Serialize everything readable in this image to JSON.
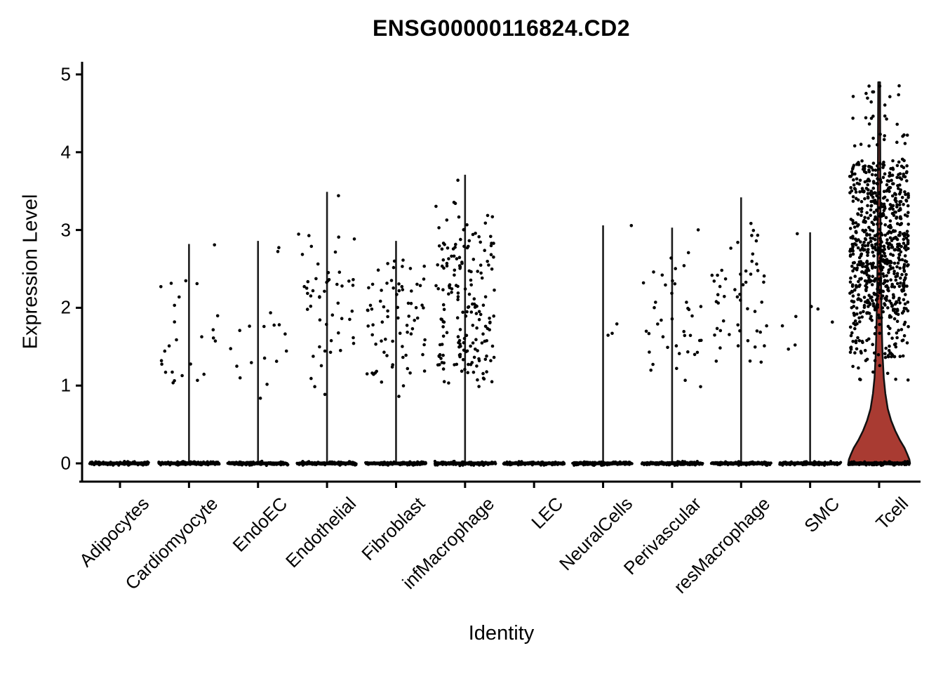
{
  "title": "ENSG00000116824.CD2",
  "y_axis": {
    "label": "Expression Level",
    "ticks": [
      "0",
      "1",
      "2",
      "3",
      "4",
      "5"
    ]
  },
  "x_axis": {
    "label": "Identity"
  },
  "chart_data": {
    "type": "violin",
    "style": "seurat-vlnplot-with-jitter",
    "title": "ENSG00000116824.CD2",
    "xlabel": "Identity",
    "ylabel": "Expression Level",
    "ylim": [
      0,
      5
    ],
    "grid": false,
    "legend": "none",
    "point_color": "#000000",
    "violin_line_color": "#1c1c1c",
    "tcell_violin_fill": "#a93b32",
    "tcell_violin_stroke": "#111111",
    "categories": [
      {
        "name": "Adipocytes",
        "violin_max": 0,
        "violin_shape": "none",
        "n_zero": 130,
        "clusters": []
      },
      {
        "name": "Cardiomyocyte",
        "violin_max": 2.82,
        "violin_shape": "collapsed",
        "n_zero": 150,
        "clusters": [
          [
            0.85,
            1.55,
            12
          ],
          [
            1.55,
            2.45,
            13
          ],
          [
            2.78,
            2.82,
            1
          ]
        ]
      },
      {
        "name": "EndoEC",
        "violin_max": 2.86,
        "violin_shape": "collapsed",
        "n_zero": 150,
        "clusters": [
          [
            0.8,
            1.1,
            3
          ],
          [
            1.2,
            2.05,
            13
          ],
          [
            2.6,
            2.85,
            2
          ]
        ]
      },
      {
        "name": "Endothelial",
        "violin_max": 3.49,
        "violin_shape": "collapsed",
        "n_zero": 150,
        "clusters": [
          [
            0.88,
            1.3,
            4
          ],
          [
            1.3,
            2.55,
            38
          ],
          [
            2.55,
            2.95,
            8
          ],
          [
            3.44,
            3.47,
            1
          ]
        ]
      },
      {
        "name": "Fibroblast",
        "violin_max": 2.86,
        "violin_shape": "collapsed",
        "n_zero": 150,
        "clusters": [
          [
            0.85,
            1.2,
            10
          ],
          [
            1.2,
            2.35,
            55
          ],
          [
            2.35,
            2.62,
            10
          ]
        ]
      },
      {
        "name": "infMacrophage",
        "violin_max": 3.71,
        "violin_shape": "collapsed",
        "n_zero": 150,
        "clusters": [
          [
            0.95,
            1.25,
            14
          ],
          [
            1.25,
            2.6,
            130
          ],
          [
            2.6,
            3.2,
            40
          ],
          [
            3.2,
            3.4,
            3
          ],
          [
            3.6,
            3.65,
            1
          ]
        ]
      },
      {
        "name": "LEC",
        "violin_max": 0,
        "violin_shape": "none",
        "n_zero": 115,
        "clusters": []
      },
      {
        "name": "NeuralCells",
        "violin_max": 3.06,
        "violin_shape": "collapsed",
        "n_zero": 150,
        "clusters": [
          [
            1.6,
            1.8,
            3
          ],
          [
            3.04,
            3.06,
            1
          ]
        ]
      },
      {
        "name": "Perivascular",
        "violin_max": 3.03,
        "violin_shape": "collapsed",
        "n_zero": 150,
        "clusters": [
          [
            0.95,
            1.3,
            5
          ],
          [
            1.35,
            2.35,
            30
          ],
          [
            2.4,
            2.75,
            6
          ],
          [
            3.0,
            3.02,
            1
          ]
        ]
      },
      {
        "name": "resMacrophage",
        "violin_max": 3.42,
        "violin_shape": "collapsed",
        "n_zero": 150,
        "clusters": [
          [
            1.3,
            1.6,
            8
          ],
          [
            1.6,
            2.5,
            35
          ],
          [
            2.5,
            3.12,
            10
          ]
        ]
      },
      {
        "name": "SMC",
        "violin_max": 2.97,
        "violin_shape": "collapsed",
        "n_zero": 150,
        "clusters": [
          [
            1.45,
            1.55,
            2
          ],
          [
            1.75,
            2.2,
            5
          ],
          [
            2.95,
            2.97,
            1
          ]
        ]
      },
      {
        "name": "Tcell",
        "violin_max": 4.9,
        "violin_shape": "filled",
        "n_zero": 160,
        "clusters": [
          [
            1.05,
            1.35,
            12
          ],
          [
            1.35,
            1.9,
            80
          ],
          [
            1.9,
            3.0,
            420
          ],
          [
            3.0,
            3.9,
            260
          ],
          [
            3.9,
            4.5,
            22
          ],
          [
            4.5,
            4.88,
            12
          ]
        ],
        "violin_profile": [
          [
            4.9,
            0.03
          ],
          [
            4.2,
            0.035
          ],
          [
            3.2,
            0.044
          ],
          [
            2.6,
            0.052
          ],
          [
            2.1,
            0.07
          ],
          [
            1.7,
            0.09
          ],
          [
            1.4,
            0.11
          ],
          [
            1.1,
            0.15
          ],
          [
            0.9,
            0.2
          ],
          [
            0.7,
            0.28
          ],
          [
            0.55,
            0.39
          ],
          [
            0.42,
            0.52
          ],
          [
            0.3,
            0.67
          ],
          [
            0.2,
            0.82
          ],
          [
            0.12,
            0.91
          ],
          [
            0.05,
            0.98
          ],
          [
            0.0,
            1.0
          ]
        ]
      }
    ]
  }
}
